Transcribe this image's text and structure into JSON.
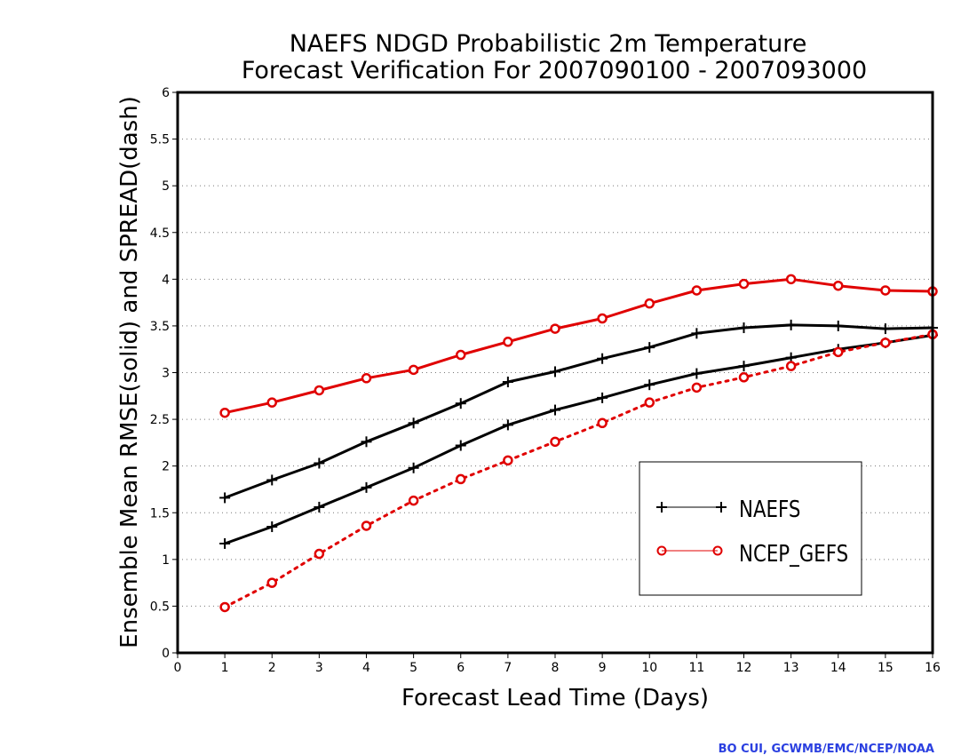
{
  "chart_data": {
    "type": "line",
    "title": [
      "NAEFS NDGD Probabilistic 2m Temperature",
      "Forecast Verification For 2007090100 - 2007093000"
    ],
    "xlabel": "Forecast Lead Time (Days)",
    "ylabel": "Ensemble Mean RMSE(solid) and SPREAD(dash)",
    "xlim": [
      0,
      16
    ],
    "ylim": [
      0,
      6
    ],
    "x_ticks": [
      0,
      1,
      2,
      3,
      4,
      5,
      6,
      7,
      8,
      9,
      10,
      11,
      12,
      13,
      14,
      15,
      16
    ],
    "y_ticks": [
      0,
      0.5,
      1,
      1.5,
      2,
      2.5,
      3,
      3.5,
      4,
      4.5,
      5,
      5.5,
      6
    ],
    "grid": "horizontal-dotted",
    "legend_position": "lower-right",
    "x": [
      1,
      2,
      3,
      4,
      5,
      6,
      7,
      8,
      9,
      10,
      11,
      12,
      13,
      14,
      15,
      16
    ],
    "series": [
      {
        "name": "NAEFS",
        "metric": "rmse",
        "style": "solid",
        "marker": "plus",
        "color": "#000000",
        "values": [
          1.66,
          1.85,
          2.03,
          2.26,
          2.46,
          2.67,
          2.9,
          3.01,
          3.15,
          3.27,
          3.42,
          3.48,
          3.51,
          3.5,
          3.47,
          3.48
        ]
      },
      {
        "metric": "spread",
        "style": "solid",
        "marker": "plus",
        "color": "#000000",
        "values": [
          1.17,
          1.35,
          1.56,
          1.77,
          1.98,
          2.22,
          2.44,
          2.6,
          2.73,
          2.87,
          2.99,
          3.07,
          3.16,
          3.25,
          3.32,
          3.4
        ]
      },
      {
        "name": "NCEP_GEFS",
        "metric": "rmse",
        "style": "solid",
        "marker": "circle",
        "color": "#e00000",
        "values": [
          2.57,
          2.68,
          2.81,
          2.94,
          3.03,
          3.19,
          3.33,
          3.47,
          3.58,
          3.74,
          3.88,
          3.95,
          4.0,
          3.93,
          3.88,
          3.87
        ]
      },
      {
        "metric": "spread",
        "style": "dotted",
        "marker": "circle",
        "color": "#e00000",
        "values": [
          0.49,
          0.75,
          1.06,
          1.36,
          1.63,
          1.86,
          2.06,
          2.26,
          2.46,
          2.68,
          2.84,
          2.95,
          3.07,
          3.22,
          3.32,
          3.41
        ]
      }
    ],
    "legend": [
      {
        "label": "NAEFS",
        "marker": "plus",
        "color": "#000000"
      },
      {
        "label": "NCEP_GEFS",
        "marker": "circle",
        "color": "#e00000"
      }
    ]
  },
  "credit": {
    "text": "BO CUI, GCWMB/EMC/NCEP/NOAA",
    "color": "#2a3fe0"
  }
}
